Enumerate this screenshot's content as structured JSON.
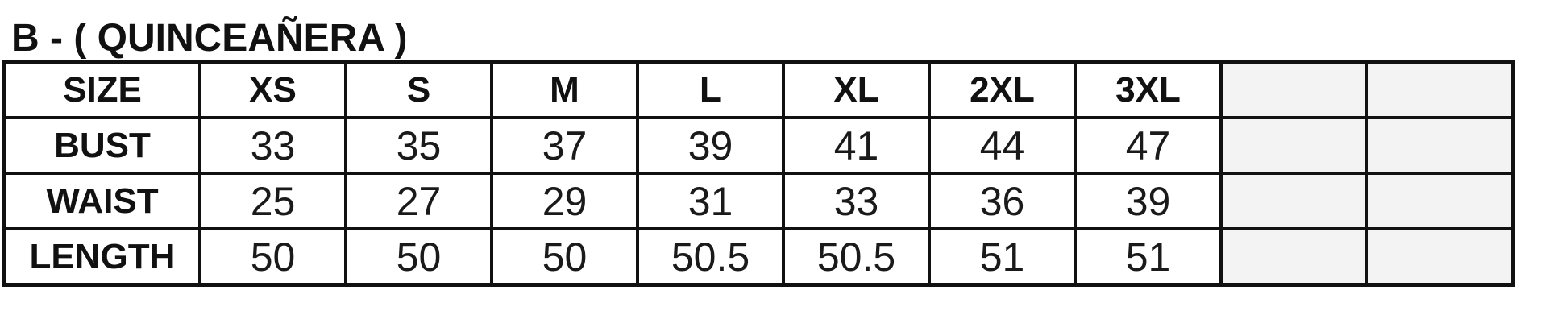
{
  "title": "B - ( QUINCEAÑERA )",
  "table": {
    "header": [
      "SIZE",
      "XS",
      "S",
      "M",
      "L",
      "XL",
      "2XL",
      "3XL",
      "",
      ""
    ],
    "rows": [
      {
        "label": "BUST",
        "values": [
          "33",
          "35",
          "37",
          "39",
          "41",
          "44",
          "47",
          "",
          ""
        ]
      },
      {
        "label": "WAIST",
        "values": [
          "25",
          "27",
          "29",
          "31",
          "33",
          "36",
          "39",
          "",
          ""
        ]
      },
      {
        "label": "LENGTH",
        "values": [
          "50",
          "50",
          "50",
          "50.5",
          "50.5",
          "51",
          "51",
          "",
          ""
        ]
      }
    ]
  },
  "colors": {
    "border": "#111111",
    "empty_cell": "#f3f3f3"
  }
}
